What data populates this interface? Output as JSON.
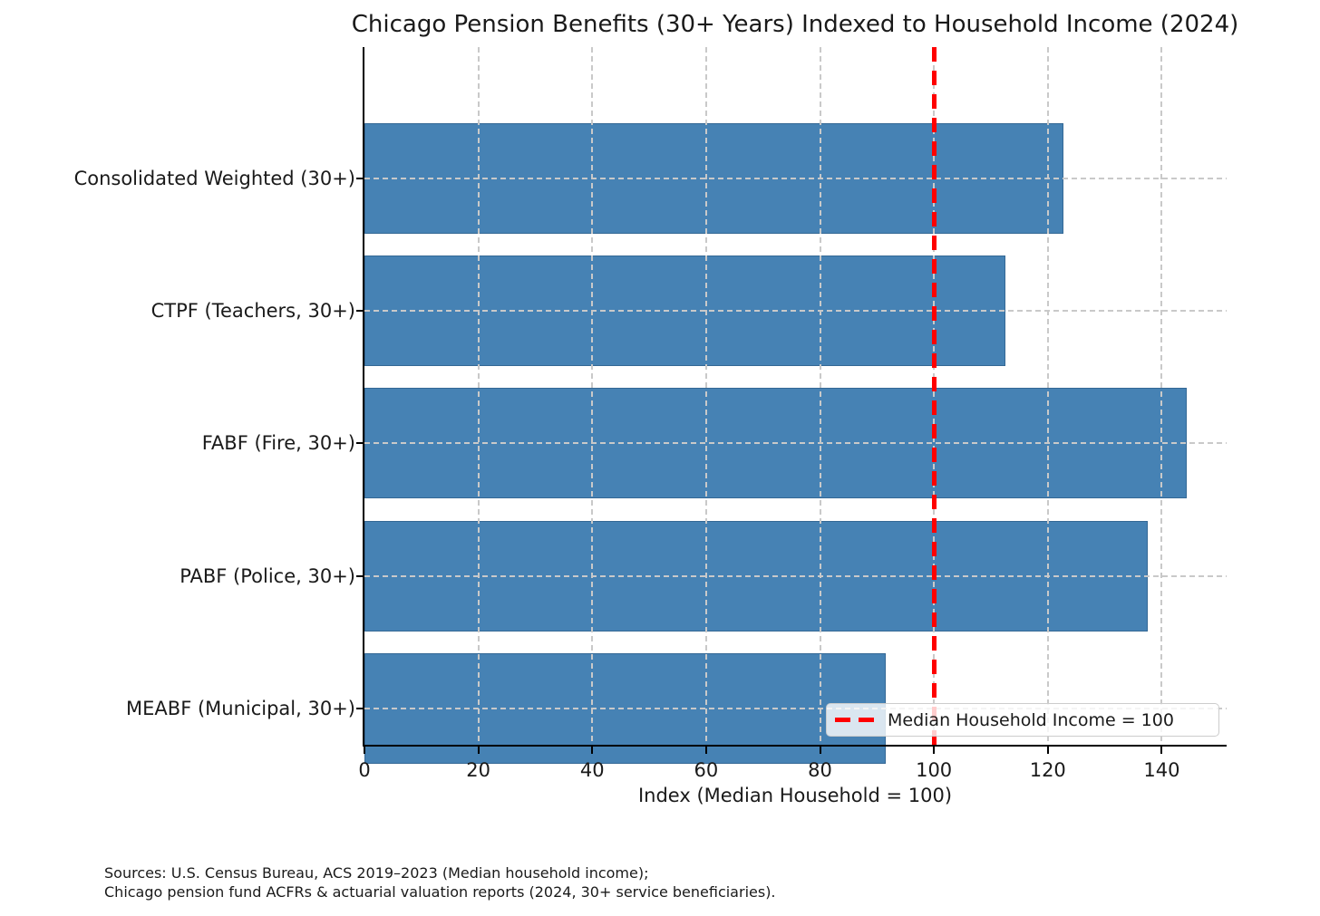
{
  "chart_data": {
    "type": "bar",
    "orientation": "horizontal",
    "title": "Chicago Pension Benefits (30+ Years) Indexed to Household Income (2024)",
    "xlabel": "Index (Median Household = 100)",
    "categories": [
      "Consolidated Weighted (30+)",
      "CTPF (Teachers, 30+)",
      "FABF (Fire, 30+)",
      "PABF (Police, 30+)",
      "MEABF (Municipal, 30+)"
    ],
    "values": [
      122.8,
      112.5,
      144.4,
      137.5,
      91.5
    ],
    "xlim": [
      0,
      151.4
    ],
    "xticks": [
      0,
      20,
      40,
      60,
      80,
      100,
      120,
      140
    ],
    "grid": true,
    "bar_color": "#4682b4",
    "reference_line": {
      "value": 100,
      "label": "Median Household Income = 100",
      "color": "#ff0000",
      "style": "dashed"
    },
    "legend": {
      "position": "lower right",
      "label": "Median Household Income = 100"
    }
  },
  "footer": {
    "source_line1": "Sources: U.S. Census Bureau, ACS 2019–2023 (Median household income);",
    "source_line2": "Chicago pension fund ACFRs & actuarial valuation reports (2024, 30+ service beneficiaries)."
  }
}
